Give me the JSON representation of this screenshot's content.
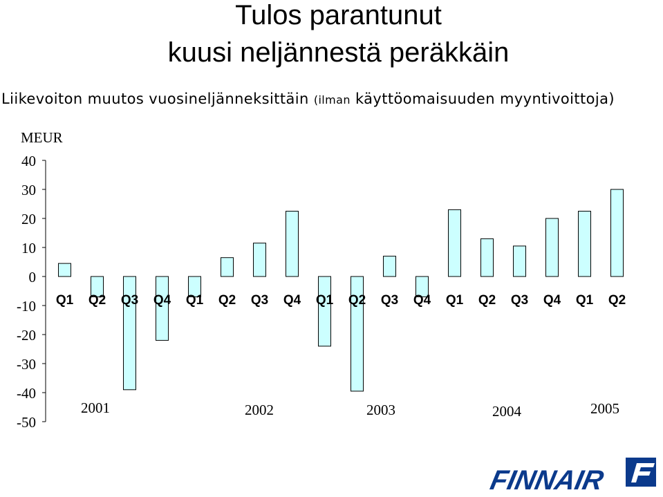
{
  "header": {
    "title_line1": "Tulos parantunut",
    "title_line2": "kuusi neljännestä peräkkäin",
    "subtitle_main": "Liikevoiton muutos vuosineljänneksittäin ",
    "subtitle_small": "(ilman",
    "subtitle_rest": " käyttöomaisuuden myyntivoittoja)"
  },
  "chart_data": {
    "type": "bar",
    "ylabel": "MEUR",
    "ylim": [
      -50,
      40
    ],
    "yticks": [
      40,
      30,
      20,
      10,
      0,
      -10,
      -20,
      -30,
      -40,
      -50
    ],
    "bar_fill": "#ccffff",
    "bar_stroke": "#000000",
    "categories": [
      "Q1",
      "Q2",
      "Q3",
      "Q4",
      "Q1",
      "Q2",
      "Q3",
      "Q4",
      "Q1",
      "Q2",
      "Q3",
      "Q4",
      "Q1",
      "Q2",
      "Q3",
      "Q4",
      "Q1",
      "Q2"
    ],
    "years": [
      "2001",
      "2002",
      "2003",
      "2004",
      "2005"
    ],
    "values": [
      4.5,
      -7,
      -39,
      -22,
      -7,
      6.5,
      11.5,
      22.5,
      -24,
      -39.5,
      7,
      -7,
      23,
      13,
      10.5,
      20,
      22.5,
      30
    ]
  },
  "logo": {
    "text": "FINNAIR",
    "color": "#0b3a8c"
  }
}
